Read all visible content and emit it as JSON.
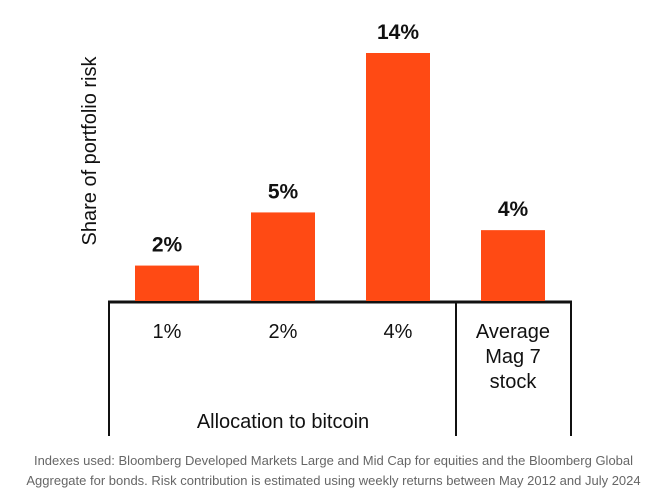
{
  "chart_data": {
    "type": "bar",
    "ylabel": "Share of portfolio risk",
    "xlabel": "Allocation to bitcoin",
    "categories": [
      "1%",
      "2%",
      "4%"
    ],
    "values": [
      2,
      5,
      14
    ],
    "data_labels": [
      "2%",
      "5%",
      "14%"
    ],
    "comparison": {
      "category_lines": [
        "Average",
        "Mag 7",
        "stock"
      ],
      "value": 4,
      "data_label": "4%"
    },
    "ylim": [
      0,
      14
    ],
    "grid": false,
    "colors": {
      "bar": "#FF4A14",
      "axis": "#111111",
      "text": "#111111"
    }
  },
  "footnote": {
    "line1": "Indexes used: Bloomberg Developed Markets Large and Mid Cap for equities and the Bloomberg Global",
    "line2": "Aggregate for bonds. Risk contribution is estimated using weekly returns between May 2012 and July 2024"
  }
}
